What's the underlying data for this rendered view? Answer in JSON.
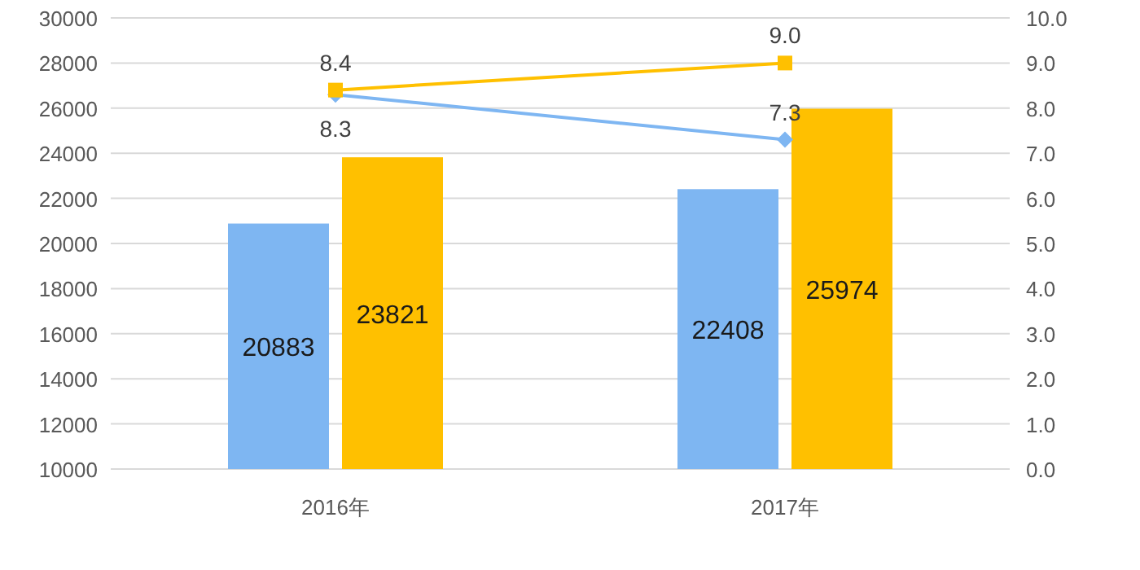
{
  "chart_data": {
    "type": "bar",
    "categories": [
      "2016年",
      "2017年"
    ],
    "series": [
      {
        "color": "#7eb6f2",
        "values": [
          20883,
          22408
        ],
        "value_labels": [
          "20883",
          "22408"
        ]
      },
      {
        "color": "#ffc000",
        "values": [
          23821,
          25974
        ],
        "value_labels": [
          "23821",
          "25974"
        ]
      },
      {
        "type": "line",
        "axis": "y2",
        "color": "#7eb6f2",
        "marker": "diamond",
        "values": [
          8.3,
          7.3
        ],
        "value_labels": [
          "8.3",
          "7.3"
        ]
      },
      {
        "type": "line",
        "axis": "y2",
        "color": "#ffc000",
        "marker": "square",
        "values": [
          8.4,
          9.0
        ],
        "value_labels": [
          "8.4",
          "9.0"
        ]
      }
    ],
    "ylim": [
      10000,
      30000
    ],
    "yticks": [
      10000,
      12000,
      14000,
      16000,
      18000,
      20000,
      22000,
      24000,
      26000,
      28000,
      30000
    ],
    "y2lim": [
      0,
      10
    ],
    "y2ticks": [
      {
        "value": 0,
        "label": "0.0"
      },
      {
        "value": 1,
        "label": "1.0"
      },
      {
        "value": 2,
        "label": "2.0"
      },
      {
        "value": 3,
        "label": "3.0"
      },
      {
        "value": 4,
        "label": "4.0"
      },
      {
        "value": 5,
        "label": "5.0"
      },
      {
        "value": 6,
        "label": "6.0"
      },
      {
        "value": 7,
        "label": "7.0"
      },
      {
        "value": 8,
        "label": "8.0"
      },
      {
        "value": 9,
        "label": "9.0"
      },
      {
        "value": 10,
        "label": "10.0"
      }
    ],
    "grid": "y"
  }
}
